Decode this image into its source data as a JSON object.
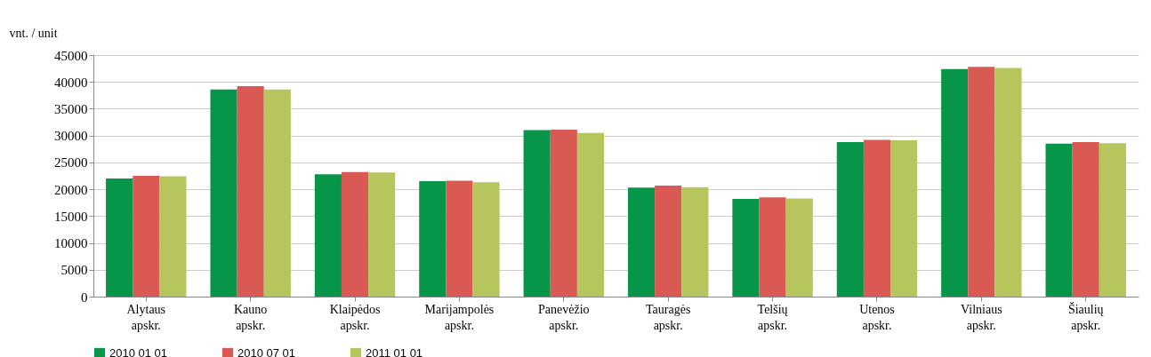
{
  "chart_data": {
    "type": "bar",
    "ylabel": "vnt. / unit",
    "categories": [
      "Alytaus apskr.",
      "Kauno apskr.",
      "Klaipėdos apskr.",
      "Marijampolės apskr.",
      "Panevėžio apskr.",
      "Tauragės apskr.",
      "Telšių apskr.",
      "Utenos apskr.",
      "Vilniaus apskr.",
      "Šiaulių apskr."
    ],
    "series": [
      {
        "name": "2010 01 01",
        "color": "#07954a",
        "values": [
          22000,
          38600,
          22800,
          21500,
          31000,
          20300,
          18200,
          28800,
          42400,
          28500
        ]
      },
      {
        "name": "2010 07 01",
        "color": "#d95953",
        "values": [
          22500,
          39200,
          23200,
          21600,
          31100,
          20700,
          18500,
          29200,
          42800,
          28800
        ]
      },
      {
        "name": "2011 01 01",
        "color": "#b6c55c",
        "values": [
          22400,
          38600,
          23100,
          21300,
          30500,
          20400,
          18300,
          29100,
          42600,
          28600
        ]
      }
    ],
    "ylim": [
      0,
      45000
    ],
    "yticks": [
      0,
      5000,
      10000,
      15000,
      20000,
      25000,
      30000,
      35000,
      40000,
      45000
    ],
    "grid": "y",
    "legend": "bottom"
  }
}
